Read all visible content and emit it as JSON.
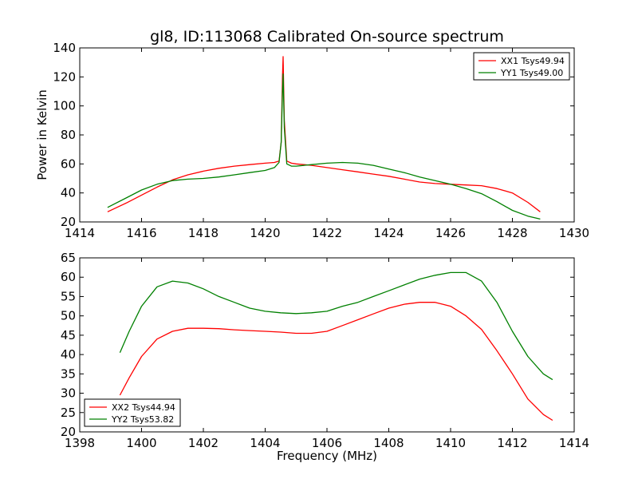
{
  "figure": {
    "title": "gl8, ID:113068 Calibrated On-source spectrum",
    "xlabel": "Frequency (MHz)",
    "ylabel": "Power in Kelvin"
  },
  "colors": {
    "red": "#ff0000",
    "green": "#008000"
  },
  "chart_data": [
    {
      "type": "line",
      "title": "",
      "xlabel": "",
      "ylabel": "Power in Kelvin",
      "xlim": [
        1414,
        1430
      ],
      "ylim": [
        20,
        140
      ],
      "xticks": [
        1414,
        1416,
        1418,
        1420,
        1422,
        1424,
        1426,
        1428,
        1430
      ],
      "yticks": [
        20,
        40,
        60,
        80,
        100,
        120,
        140
      ],
      "legend_position": "top-right",
      "series": [
        {
          "name": "XX1 Tsys49.94",
          "color": "#ff0000",
          "x": [
            1414.9,
            1415.5,
            1416.0,
            1416.5,
            1417.0,
            1417.5,
            1418.0,
            1418.5,
            1419.0,
            1419.5,
            1420.0,
            1420.3,
            1420.45,
            1420.52,
            1420.56,
            1420.58,
            1420.62,
            1420.7,
            1420.85,
            1421.0,
            1421.5,
            1422.0,
            1422.5,
            1423.0,
            1423.5,
            1424.0,
            1424.5,
            1425.0,
            1425.5,
            1426.0,
            1426.5,
            1427.0,
            1427.5,
            1428.0,
            1428.5,
            1428.9
          ],
          "y": [
            27,
            33,
            38.5,
            44,
            49,
            52.5,
            55,
            57,
            58.5,
            59.5,
            60.5,
            61,
            62,
            75,
            120,
            134,
            90,
            62,
            60.5,
            60,
            59,
            57.5,
            56,
            54.5,
            53,
            51.5,
            49.5,
            47.5,
            46.5,
            46,
            45.5,
            45,
            43,
            40,
            33.5,
            27
          ]
        },
        {
          "name": "YY1 Tsys49.00",
          "color": "#008000",
          "x": [
            1414.9,
            1415.5,
            1416.0,
            1416.5,
            1417.0,
            1417.5,
            1418.0,
            1418.5,
            1419.0,
            1419.5,
            1420.0,
            1420.3,
            1420.45,
            1420.52,
            1420.56,
            1420.58,
            1420.62,
            1420.7,
            1420.85,
            1421.0,
            1421.5,
            1422.0,
            1422.5,
            1423.0,
            1423.5,
            1424.0,
            1424.5,
            1425.0,
            1425.5,
            1426.0,
            1426.5,
            1427.0,
            1427.5,
            1428.0,
            1428.5,
            1428.9
          ],
          "y": [
            30,
            36.5,
            42,
            46,
            48.5,
            49.5,
            50,
            51,
            52.5,
            54,
            55.5,
            57.5,
            61,
            75,
            110,
            122,
            85,
            60,
            58.5,
            58.5,
            59.5,
            60.5,
            61,
            60.5,
            59,
            56.5,
            54,
            51,
            48.5,
            46,
            43,
            39.5,
            34,
            28,
            24,
            22
          ]
        }
      ]
    },
    {
      "type": "line",
      "title": "",
      "xlabel": "Frequency (MHz)",
      "ylabel": "",
      "xlim": [
        1398,
        1414
      ],
      "ylim": [
        20,
        65
      ],
      "xticks": [
        1398,
        1400,
        1402,
        1404,
        1406,
        1408,
        1410,
        1412,
        1414
      ],
      "yticks": [
        20,
        25,
        30,
        35,
        40,
        45,
        50,
        55,
        60,
        65
      ],
      "legend_position": "bottom-left",
      "series": [
        {
          "name": "XX2 Tsys44.94",
          "color": "#ff0000",
          "x": [
            1399.3,
            1399.6,
            1400.0,
            1400.5,
            1401.0,
            1401.5,
            1402.0,
            1402.5,
            1403.0,
            1403.5,
            1404.0,
            1404.5,
            1405.0,
            1405.5,
            1406.0,
            1406.5,
            1407.0,
            1407.5,
            1408.0,
            1408.5,
            1409.0,
            1409.5,
            1410.0,
            1410.5,
            1411.0,
            1411.5,
            1412.0,
            1412.5,
            1413.0,
            1413.3
          ],
          "y": [
            29.5,
            34,
            39.5,
            44,
            46,
            46.8,
            46.8,
            46.7,
            46.4,
            46.2,
            46.0,
            45.8,
            45.5,
            45.5,
            46.0,
            47.5,
            49.0,
            50.5,
            52.0,
            53.0,
            53.5,
            53.5,
            52.5,
            50.0,
            46.5,
            41.0,
            35.0,
            28.5,
            24.5,
            23.0
          ]
        },
        {
          "name": "YY2 Tsys53.82",
          "color": "#008000",
          "x": [
            1399.3,
            1399.6,
            1400.0,
            1400.5,
            1401.0,
            1401.5,
            1402.0,
            1402.5,
            1403.0,
            1403.5,
            1404.0,
            1404.5,
            1405.0,
            1405.5,
            1406.0,
            1406.5,
            1407.0,
            1407.5,
            1408.0,
            1408.5,
            1409.0,
            1409.5,
            1410.0,
            1410.5,
            1411.0,
            1411.5,
            1412.0,
            1412.5,
            1413.0,
            1413.3
          ],
          "y": [
            40.5,
            46,
            52.5,
            57.5,
            59,
            58.5,
            57,
            55,
            53.5,
            52,
            51.2,
            50.8,
            50.6,
            50.8,
            51.2,
            52.5,
            53.5,
            55.0,
            56.5,
            58.0,
            59.5,
            60.5,
            61.2,
            61.2,
            59.0,
            53.5,
            46.0,
            39.5,
            35.0,
            33.5
          ]
        }
      ]
    }
  ]
}
